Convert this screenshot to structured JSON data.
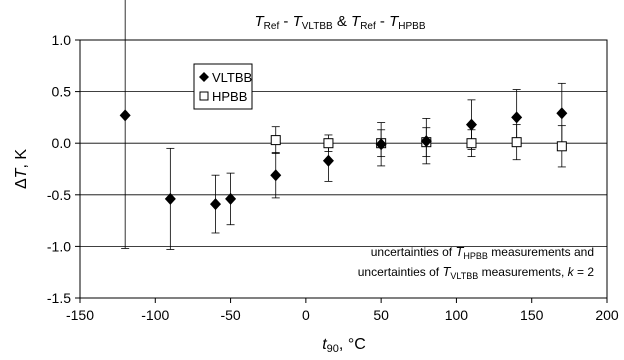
{
  "chart_data": {
    "type": "scatter",
    "title": {
      "part1_main": "T",
      "part1_sub": "Ref",
      "sep1": " - ",
      "part2_main": "T",
      "part2_sub": "VLTBB",
      "amp": " & ",
      "part3_main": "T",
      "part3_sub": "Ref",
      "sep2": " - ",
      "part4_main": "T",
      "part4_sub": "HPBB"
    },
    "xlabel": {
      "main": "t",
      "sub": "90",
      "unit": ", °C"
    },
    "ylabel": {
      "delta": "Δ",
      "main": "T",
      "unit": ", K"
    },
    "xlim": [
      -150,
      200
    ],
    "ylim": [
      -1.5,
      1.0
    ],
    "x_ticks": [
      -150,
      -100,
      -50,
      0,
      50,
      100,
      150,
      200
    ],
    "x_tick_labels": [
      "-150",
      "-100",
      "-50",
      "0",
      "50",
      "100",
      "150",
      "200"
    ],
    "y_ticks": [
      -1.5,
      -1.0,
      -0.5,
      0.0,
      0.5,
      1.0
    ],
    "y_tick_labels": [
      "-1.5",
      "-1.0",
      "-0.5",
      "0.0",
      "0.5",
      "1.0"
    ],
    "grid": "horizontal",
    "legend": {
      "placement": "top-left",
      "entries": [
        "VLTBB",
        "HPBB"
      ]
    },
    "series": [
      {
        "name": "VLTBB",
        "marker": "diamond",
        "color": "#000000",
        "x": [
          -120,
          -90,
          -60,
          -50,
          -20,
          15,
          50,
          80,
          110,
          140,
          170
        ],
        "y": [
          0.27,
          -0.54,
          -0.59,
          -0.54,
          -0.31,
          -0.17,
          -0.01,
          0.02,
          0.18,
          0.25,
          0.29
        ],
        "err": [
          1.29,
          0.49,
          0.28,
          0.25,
          0.22,
          0.2,
          0.21,
          0.22,
          0.24,
          0.27,
          0.29
        ]
      },
      {
        "name": "HPBB",
        "marker": "square-open",
        "color": "#000000",
        "x": [
          -20,
          15,
          50,
          80,
          110,
          140,
          170
        ],
        "y": [
          0.03,
          0.0,
          0.0,
          0.01,
          0.0,
          0.01,
          -0.03
        ],
        "err": [
          0.13,
          0.08,
          0.13,
          0.14,
          0.13,
          0.17,
          0.2
        ]
      }
    ],
    "annotation": {
      "line1_pre": "uncertainties of ",
      "line1_main": "T",
      "line1_sub": "HPBB",
      "line1_post": " measurements and",
      "line2_pre": "uncertainties of ",
      "line2_main": "T",
      "line2_sub": "VLTBB",
      "line2_post": " measurements, ",
      "line2_k": "k",
      "line2_eq": " = 2"
    }
  }
}
